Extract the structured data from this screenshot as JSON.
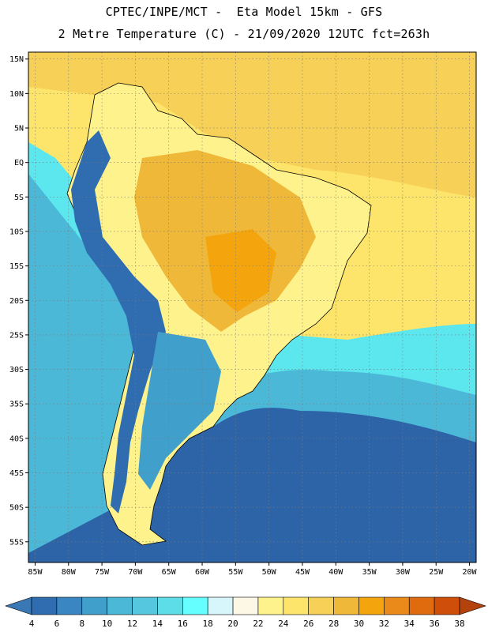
{
  "header": {
    "title_line1": "CPTEC/INPE/MCT -  Eta Model 15km - GFS",
    "title_line2": "2 Metre Temperature (C) - 21/09/2020 12UTC fct=263h"
  },
  "map": {
    "lat_labels": [
      "15N",
      "10N",
      "5N",
      "EQ",
      "5S",
      "10S",
      "15S",
      "20S",
      "25S",
      "30S",
      "35S",
      "40S",
      "45S",
      "50S",
      "55S"
    ],
    "lon_labels": [
      "85W",
      "80W",
      "75W",
      "70W",
      "65W",
      "60W",
      "55W",
      "50W",
      "45W",
      "40W",
      "35W",
      "30W",
      "25W",
      "20W"
    ],
    "lon_range": [
      -86,
      -19
    ],
    "lat_range": [
      16,
      -58
    ],
    "grid": true
  },
  "colorbar": {
    "labels": [
      "4",
      "6",
      "8",
      "10",
      "12",
      "14",
      "16",
      "18",
      "20",
      "22",
      "24",
      "26",
      "28",
      "30",
      "32",
      "34",
      "36",
      "38"
    ],
    "colors": [
      "#3a78b5",
      "#2f6db0",
      "#3a86c2",
      "#419fcb",
      "#4cb8d8",
      "#55c8df",
      "#5cdde8",
      "#66ffff",
      "#d6f6fc",
      "#fdf8e6",
      "#fef28c",
      "#fde46a",
      "#f7d058",
      "#f0b839",
      "#f4a50d",
      "#ea8a1a",
      "#e06a0e",
      "#cf4e09",
      "#b3420c"
    ]
  },
  "colors": {
    "ocean_south": "#2d64a8",
    "ocean_mid": "#4cb8d8",
    "ocean_cyan": "#5ce6ee",
    "ocean_tropical": "#fde46a",
    "ocean_north": "#f7d058",
    "land_warm": "#f0b839",
    "land_mild": "#fef28c",
    "land_hot": "#f4a50d",
    "andes": "#2f6db0",
    "patagonia": "#419fcb"
  }
}
